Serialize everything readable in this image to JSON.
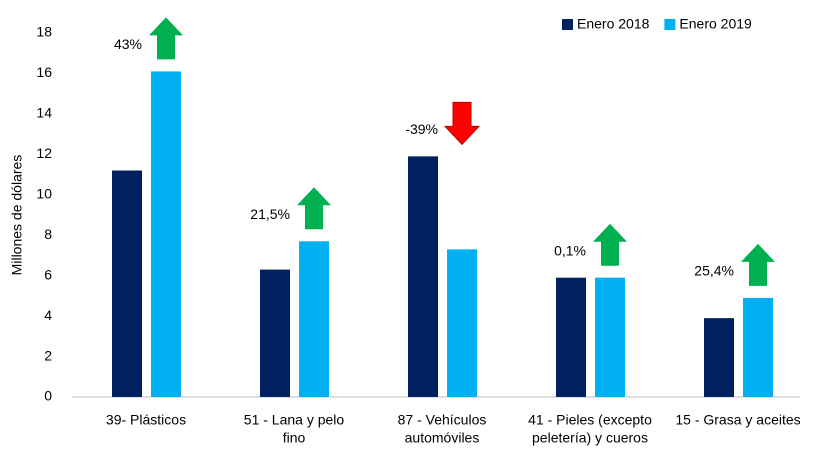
{
  "chart_data": {
    "type": "bar",
    "y_axis_label": "Millones de dólares",
    "categories": [
      [
        "39- Plásticos"
      ],
      [
        "51 - Lana y pelo",
        "fino"
      ],
      [
        "87 - Vehículos",
        "automóviles"
      ],
      [
        "41 - Pieles (excepto",
        "peletería) y cueros"
      ],
      [
        "15 - Grasa y aceites"
      ]
    ],
    "series": [
      {
        "name": "Enero 2018",
        "color": "#002060",
        "values": [
          11.2,
          6.3,
          11.9,
          5.9,
          3.9
        ]
      },
      {
        "name": "Enero 2019",
        "color": "#00b0f0",
        "values": [
          16.1,
          7.7,
          7.3,
          5.9,
          4.9
        ]
      }
    ],
    "annotations": [
      {
        "text": "43%",
        "direction": "up"
      },
      {
        "text": "21,5%",
        "direction": "up"
      },
      {
        "text": "-39%",
        "direction": "down"
      },
      {
        "text": "0,1%",
        "direction": "up"
      },
      {
        "text": "25,4%",
        "direction": "up"
      }
    ],
    "arrow_colors": {
      "up": "#00b050",
      "down": "#ff0000"
    },
    "ylim": [
      0,
      18
    ],
    "yticks": [
      0,
      2,
      4,
      6,
      8,
      10,
      12,
      14,
      16,
      18
    ],
    "grid": false,
    "legend": "top-right"
  }
}
